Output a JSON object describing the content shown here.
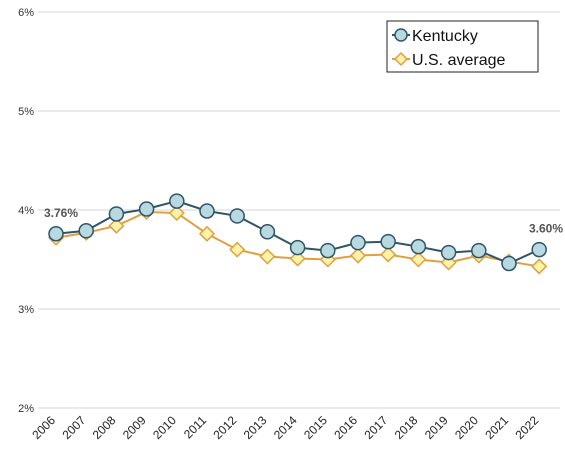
{
  "chart_data": {
    "type": "line",
    "x": [
      "2006",
      "2007",
      "2008",
      "2009",
      "2010",
      "2011",
      "2012",
      "2013",
      "2014",
      "2015",
      "2016",
      "2017",
      "2018",
      "2019",
      "2020",
      "2021",
      "2022"
    ],
    "ylim": [
      2,
      6
    ],
    "yticks": [
      "2%",
      "3%",
      "4%",
      "5%",
      "6%"
    ],
    "grid": true,
    "legend_position": "top-right",
    "series": [
      {
        "name": "Kentucky",
        "marker": "circle",
        "line_color": "#2f5568",
        "marker_fill": "#b8d9df",
        "values": [
          3.76,
          3.79,
          3.96,
          4.01,
          4.09,
          3.99,
          3.94,
          3.78,
          3.62,
          3.59,
          3.67,
          3.68,
          3.63,
          3.57,
          3.59,
          3.46,
          3.6
        ]
      },
      {
        "name": "U.S. average",
        "marker": "diamond",
        "line_color": "#e0a040",
        "marker_fill": "#fdf3a8",
        "values": [
          3.72,
          3.77,
          3.84,
          3.98,
          3.97,
          3.76,
          3.6,
          3.53,
          3.51,
          3.5,
          3.54,
          3.55,
          3.5,
          3.47,
          3.54,
          3.48,
          3.43
        ]
      }
    ],
    "annotations": [
      {
        "text": "3.76%",
        "index": 0,
        "series": 0
      },
      {
        "text": "3.60%",
        "index": 16,
        "series": 0
      }
    ]
  }
}
